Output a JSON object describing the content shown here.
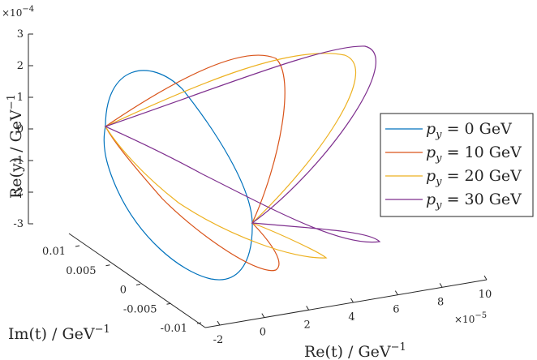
{
  "chart_data": {
    "type": "line3d",
    "legend_position": "right",
    "axes": {
      "z": {
        "label": "Re(y) / GeV",
        "label_sup": "−1",
        "exponent_base": "×10",
        "exponent_power": "−4",
        "ticks": [
          3,
          2,
          1,
          0,
          -1,
          -2,
          -3
        ],
        "tick_labels": [
          "3",
          "2",
          "1",
          "0",
          "-1",
          "-2",
          "-3"
        ],
        "range": [
          -3,
          3
        ]
      },
      "y": {
        "label": "Im(t) / GeV",
        "label_sup": "−1",
        "ticks": [
          0.01,
          0.005,
          0,
          -0.005,
          -0.01
        ],
        "tick_labels": [
          "0.01",
          "0.005",
          "0",
          "-0.005",
          "-0.01"
        ]
      },
      "x": {
        "label": "Re(t) / GeV",
        "label_sup": "−1",
        "exponent_base": "×10",
        "exponent_power": "−5",
        "ticks": [
          -2,
          0,
          2,
          4,
          6,
          8,
          10
        ],
        "tick_labels": [
          "-2",
          "0",
          "2",
          "4",
          "6",
          "8",
          "10"
        ]
      }
    },
    "series": [
      {
        "name_var": "p",
        "name_sub": "y",
        "name_rest": " = 0 GeV",
        "color": "#0072BD"
      },
      {
        "name_var": "p",
        "name_sub": "y",
        "name_rest": " = 10 GeV",
        "color": "#D95319"
      },
      {
        "name_var": "p",
        "name_sub": "y",
        "name_rest": " = 20 GeV",
        "color": "#EDB120"
      },
      {
        "name_var": "p",
        "name_sub": "y",
        "name_rest": " = 30 GeV",
        "color": "#7E2F8E"
      }
    ]
  }
}
